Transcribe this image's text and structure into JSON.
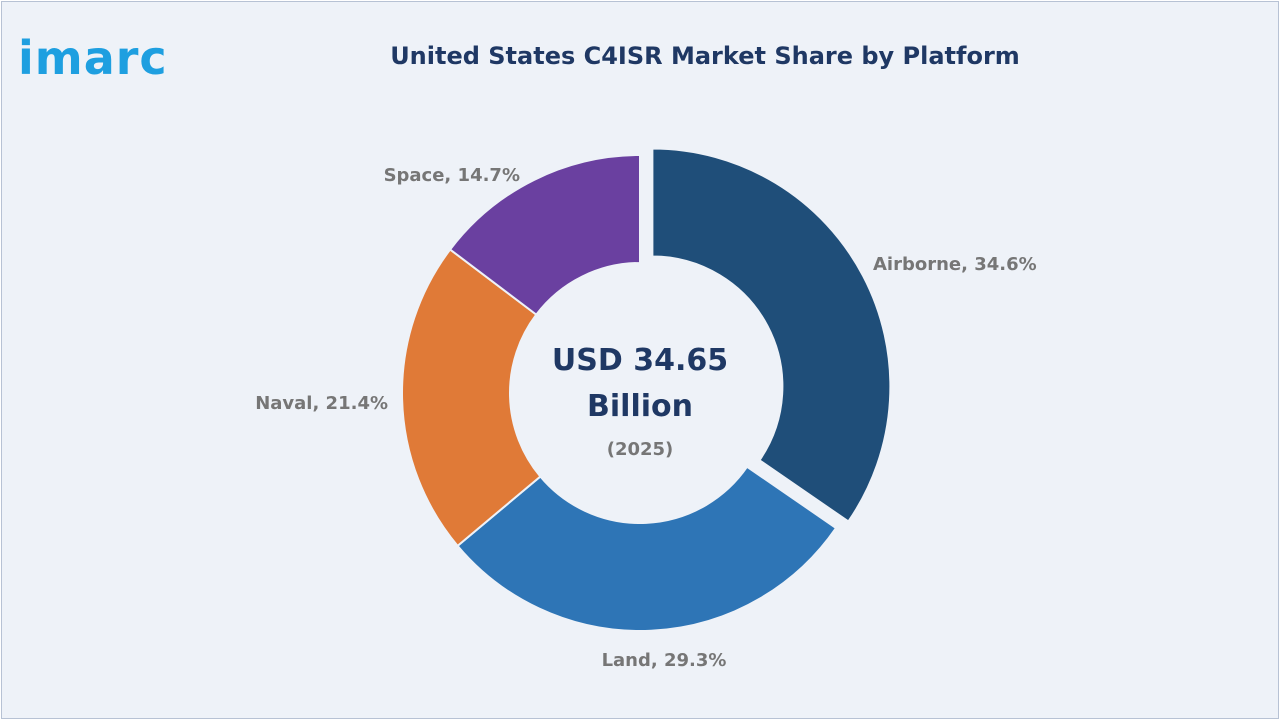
{
  "brand": {
    "logo_text": "imarc",
    "logo_color": "#1e9fe0"
  },
  "chart_data": {
    "type": "pie",
    "variant": "donut",
    "title": "United States C4ISR Market Share by Platform",
    "center_text": {
      "line1": "USD 34.65",
      "line2": "Billion",
      "line3": "(2025)"
    },
    "slices": [
      {
        "label": "Airborne",
        "value": 34.6,
        "display": "Airborne, 34.6%",
        "color": "#1f4e79",
        "exploded": true
      },
      {
        "label": "Land",
        "value": 29.3,
        "display": "Land, 29.3%",
        "color": "#2e75b6",
        "exploded": false
      },
      {
        "label": "Naval",
        "value": 21.4,
        "display": "Naval, 21.4%",
        "color": "#e07a37",
        "exploded": false
      },
      {
        "label": "Space",
        "value": 14.7,
        "display": "Space, 14.7%",
        "color": "#6a40a0",
        "exploded": false
      }
    ],
    "legend": "none"
  }
}
